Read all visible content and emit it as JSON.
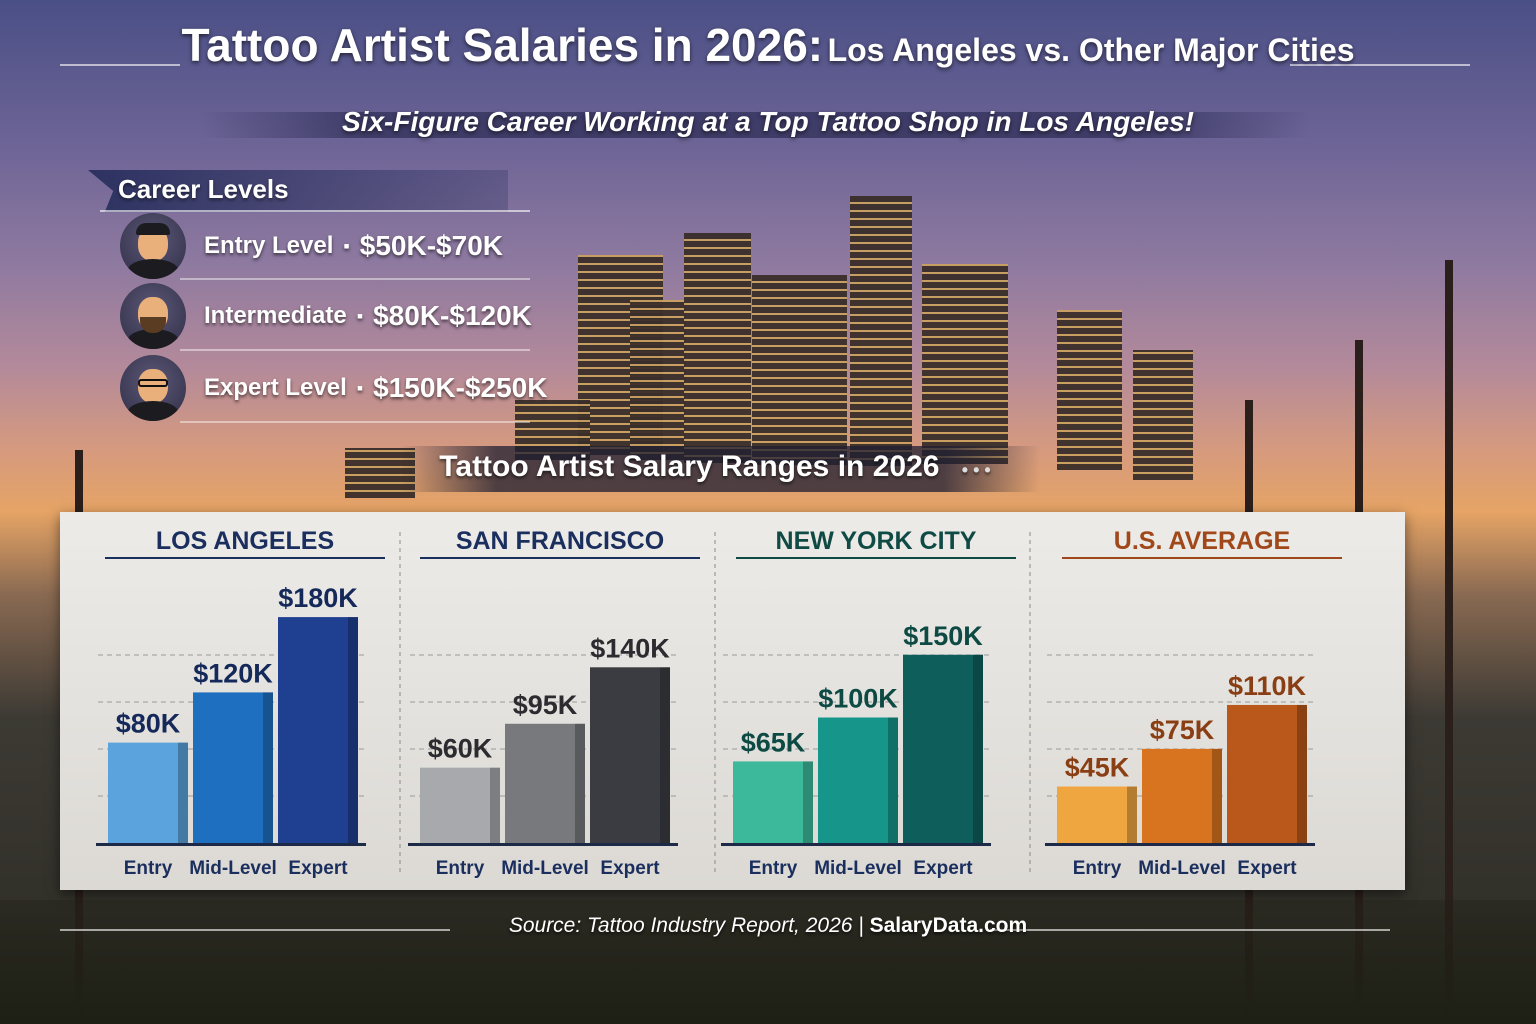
{
  "header": {
    "title_main": "Tattoo Artist Salaries in 2026:",
    "title_rest": "Los Angeles vs. Other Major Cities",
    "subtitle": "Six-Figure Career Working at a Top Tattoo Shop in Los Angeles!"
  },
  "career_levels": {
    "title": "Career Levels",
    "separator": "▪",
    "items": [
      {
        "name": "Entry Level",
        "range": "$50K-$70K",
        "avatar": "artist-cap-avatar"
      },
      {
        "name": "Intermediate",
        "range": "$80K-$120K",
        "avatar": "artist-beanie-beard-avatar"
      },
      {
        "name": "Expert Level",
        "range": "$150K-$250K",
        "avatar": "artist-glasses-beard-avatar"
      }
    ]
  },
  "chart_data": {
    "type": "bar",
    "title": "Tattoo Artist Salary Ranges in 2026",
    "title_decoration": "• • •",
    "categories": [
      "Entry",
      "Mid-Level",
      "Expert"
    ],
    "unit": "USD thousands",
    "grid": true,
    "panels": [
      {
        "name": "LOS ANGELES",
        "title_color": "#1b2f5e",
        "values": [
          80,
          120,
          180
        ],
        "labels": [
          "$80K",
          "$120K",
          "$180K"
        ],
        "colors": [
          "#5aa3dc",
          "#1f6fc0",
          "#1f3f90"
        ],
        "label_color": "#14295a"
      },
      {
        "name": "SAN FRANCISCO",
        "title_color": "#1b2f5e",
        "values": [
          60,
          95,
          140
        ],
        "labels": [
          "$60K",
          "$95K",
          "$140K"
        ],
        "colors": [
          "#a7a9ac",
          "#77797c",
          "#3b3c41"
        ],
        "label_color": "#2c2c30"
      },
      {
        "name": "NEW YORK CITY",
        "title_color": "#0f4a44",
        "values": [
          65,
          100,
          150
        ],
        "labels": [
          "$65K",
          "$100K",
          "$150K"
        ],
        "colors": [
          "#3cb99a",
          "#16968a",
          "#0e5f5c"
        ],
        "label_color": "#0d4a44"
      },
      {
        "name": "U.S. AVERAGE",
        "title_color": "#a0481a",
        "values": [
          45,
          75,
          110
        ],
        "labels": [
          "$45K",
          "$75K",
          "$110K"
        ],
        "colors": [
          "#f0a640",
          "#d8741f",
          "#b9581a"
        ],
        "label_color": "#8a3e14"
      }
    ]
  },
  "footer": {
    "source_label": "Source: Tattoo Industry Report, 2026 |",
    "source_site": "SalaryData.com"
  }
}
